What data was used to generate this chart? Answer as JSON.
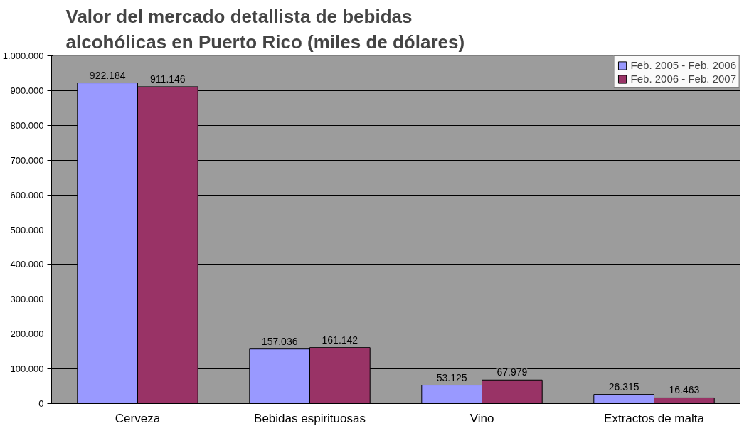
{
  "chart_data": {
    "type": "bar",
    "title": "Valor del mercado detallista de bebidas\nalcohólicas en Puerto Rico (miles de dólares)",
    "categories": [
      "Cerveza",
      "Bebidas espirituosas",
      "Vino",
      "Extractos de malta"
    ],
    "series": [
      {
        "name": "Feb. 2005 - Feb. 2006",
        "color": "#9999ff",
        "values": [
          922184,
          157036,
          53125,
          26315
        ],
        "value_labels": [
          "922.184",
          "157.036",
          "53.125",
          "26.315"
        ]
      },
      {
        "name": "Feb. 2006 - Feb. 2007",
        "color": "#993366",
        "values": [
          911146,
          161142,
          67979,
          16463
        ],
        "value_labels": [
          "911.146",
          "161.142",
          "67.979",
          "16.463"
        ]
      }
    ],
    "ylim": [
      0,
      1000000
    ],
    "yticks": [
      {
        "value": 0,
        "label": "0"
      },
      {
        "value": 100000,
        "label": "100.000"
      },
      {
        "value": 200000,
        "label": "200.000"
      },
      {
        "value": 300000,
        "label": "300.000"
      },
      {
        "value": 400000,
        "label": "400.000"
      },
      {
        "value": 500000,
        "label": "500.000"
      },
      {
        "value": 600000,
        "label": "600.000"
      },
      {
        "value": 700000,
        "label": "700.000"
      },
      {
        "value": 800000,
        "label": "800.000"
      },
      {
        "value": 900000,
        "label": "900.000"
      },
      {
        "value": 1000000,
        "label": "1.000.000"
      }
    ],
    "grid": "y",
    "legend": "top right"
  }
}
